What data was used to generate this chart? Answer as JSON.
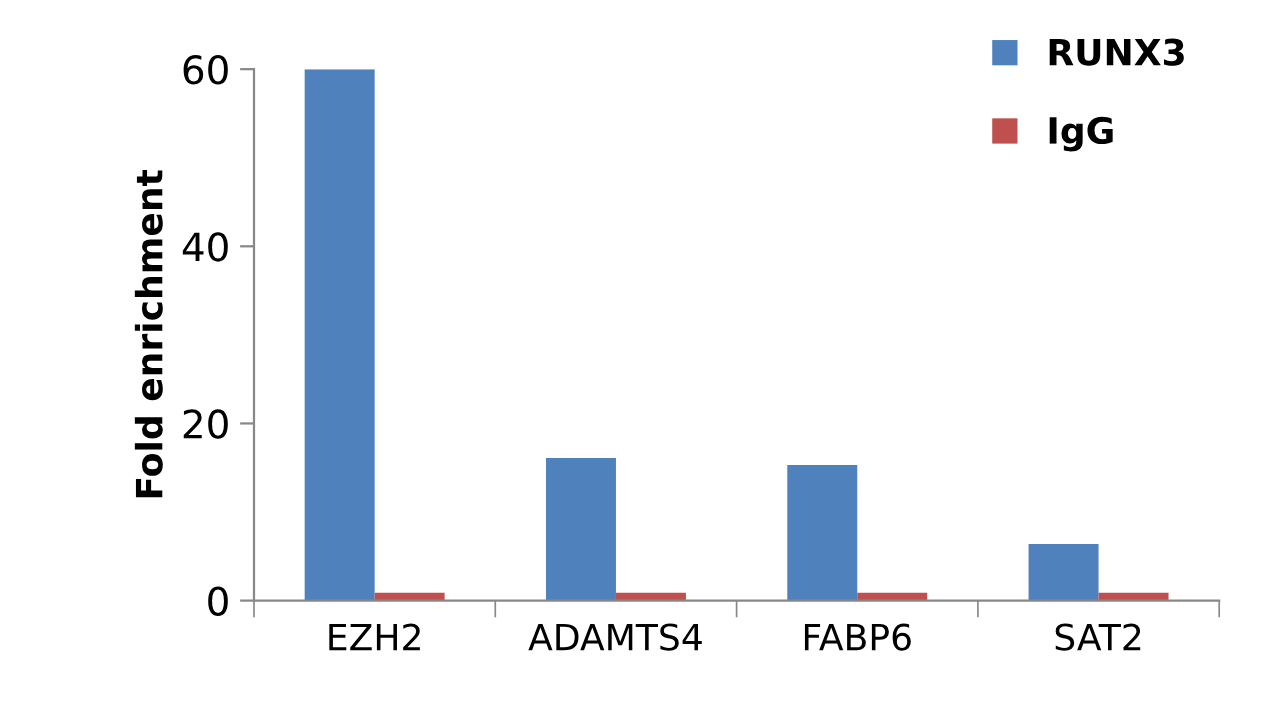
{
  "chart_data": {
    "type": "bar",
    "ylabel": "Fold enrichment",
    "categories": [
      "EZH2",
      "ADAMTS4",
      "FABP6",
      "SAT2"
    ],
    "series": [
      {
        "name": "RUNX3",
        "color": "#4f81bd",
        "values": [
          60,
          16.1,
          15.3,
          6.4
        ]
      },
      {
        "name": "IgG",
        "color": "#c0504d",
        "values": [
          0.9,
          0.9,
          0.9,
          0.9
        ]
      }
    ],
    "ylim": [
      0,
      60
    ],
    "yticks": [
      0,
      20,
      40,
      60
    ],
    "grid": false,
    "legend": "top right"
  }
}
